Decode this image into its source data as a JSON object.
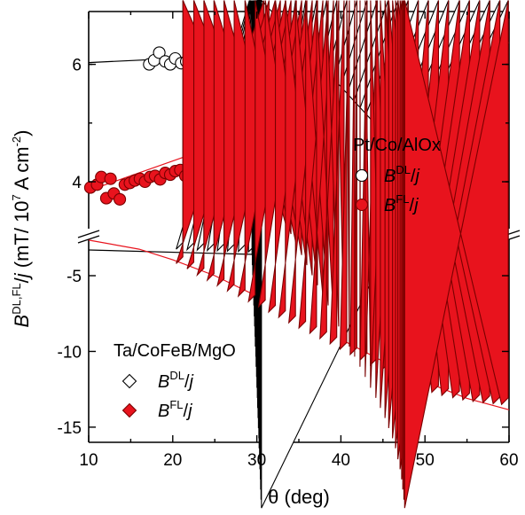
{
  "chart_data": {
    "type": "scatter",
    "xlabel": "θ (deg)",
    "ylabel": {
      "prefix": "B",
      "superscript": "DL,FL",
      "mid": "/",
      "italic_j": "j",
      "suffix": " (mT/ 10",
      "exp": "7",
      "unit": " A cm",
      "unit_exp": "-2",
      "close": ")"
    },
    "xlim": [
      10,
      60
    ],
    "xticks": [
      "10",
      "20",
      "30",
      "40",
      "50",
      "60"
    ],
    "panels": [
      {
        "id": "top",
        "ylim": [
          3.2,
          6.9
        ],
        "yticks": [
          {
            "value": 4,
            "label": "4"
          },
          {
            "value": 6,
            "label": "6"
          }
        ],
        "label": "Pt/Co/AlOx",
        "series": [
          {
            "name": "DL",
            "marker": "circle-open",
            "color": "#000000",
            "x": [
              17.2,
              17.8,
              18.4,
              19.1,
              19.7,
              20.3,
              21.0,
              21.6,
              22.3,
              22.8,
              23.4,
              24.0,
              24.6,
              25.2,
              25.9,
              26.5,
              27.1,
              27.6,
              28.2,
              28.6,
              29.3,
              29.9,
              30.5,
              31.2,
              31.8,
              32.4,
              33.0,
              33.6,
              34.2,
              34.9,
              35.5,
              36.1,
              36.7,
              37.3,
              37.9,
              38.5,
              39.2,
              39.8,
              40.4,
              41.0,
              41.6,
              42.2,
              42.8,
              43.5,
              44.1,
              44.7,
              45.3,
              45.9,
              46.5,
              47.1,
              47.8,
              48.4,
              49.0,
              49.6,
              50.2,
              50.8,
              51.4,
              52.1,
              52.7,
              53.3,
              53.9
            ],
            "y": [
              6.0,
              6.07,
              6.2,
              6.05,
              6.0,
              6.1,
              6.02,
              6.05,
              6.1,
              6.06,
              6.02,
              6.0,
              6.07,
              6.08,
              6.02,
              6.05,
              6.0,
              6.02,
              6.25,
              6.38,
              6.3,
              6.12,
              6.08,
              6.04,
              6.15,
              6.05,
              6.1,
              6.08,
              6.14,
              6.12,
              6.06,
              6.15,
              6.1,
              6.2,
              6.08,
              6.22,
              6.12,
              6.18,
              6.1,
              6.25,
              6.15,
              6.18,
              6.22,
              6.16,
              6.27,
              6.2,
              6.24,
              6.28,
              6.32,
              6.25,
              6.38,
              6.4,
              6.3,
              6.34,
              6.27,
              6.31,
              6.29,
              6.26,
              6.22,
              6.3,
              6.34
            ]
          },
          {
            "name": "FL",
            "marker": "circle-filled",
            "color": "#e8131d",
            "x": [
              10.2,
              11.0,
              11.5,
              12.1,
              12.6,
              13.0,
              13.7,
              14.3,
              14.9,
              15.5,
              16.1,
              16.7,
              17.3,
              17.9,
              18.5,
              19.1,
              19.7,
              20.3,
              20.9,
              21.5,
              22.1,
              22.7,
              23.3,
              23.9,
              24.5,
              25.1,
              25.7,
              26.3,
              26.9,
              27.5,
              28.1,
              28.7,
              29.3,
              29.9,
              30.5,
              31.1,
              31.7,
              32.3,
              32.9,
              33.5,
              34.1,
              34.7,
              35.3,
              35.9,
              36.5,
              37.1,
              37.7,
              38.3,
              38.9,
              39.5,
              40.1,
              40.7,
              41.3,
              41.9,
              42.5,
              43.1,
              43.7,
              44.3,
              44.9,
              45.5,
              46.1,
              46.7,
              47.3,
              47.9,
              48.5,
              49.1,
              49.7,
              50.3,
              50.9,
              51.5,
              52.1,
              52.7,
              53.3,
              53.9
            ],
            "y": [
              3.9,
              3.95,
              4.08,
              3.72,
              4.05,
              3.8,
              3.7,
              3.95,
              3.98,
              4.02,
              4.05,
              4.0,
              4.08,
              4.1,
              4.04,
              4.15,
              4.12,
              4.18,
              4.2,
              4.1,
              4.25,
              4.22,
              4.28,
              4.3,
              4.2,
              4.35,
              4.4,
              4.32,
              4.45,
              4.55,
              4.6,
              4.58,
              4.55,
              4.6,
              4.62,
              4.65,
              4.68,
              4.7,
              4.72,
              4.75,
              4.8,
              4.78,
              4.85,
              4.88,
              4.95,
              4.92,
              5.0,
              5.02,
              5.05,
              5.1,
              5.15,
              5.2,
              5.18,
              5.25,
              5.22,
              5.3,
              5.28,
              5.35,
              5.4,
              5.45,
              5.55,
              5.5,
              5.58,
              5.6,
              5.65,
              5.7,
              5.72,
              5.78,
              5.75,
              5.8,
              5.85,
              5.9,
              5.95,
              6.0
            ]
          }
        ],
        "fits": [
          {
            "color": "#000000",
            "x": [
              10,
              60
            ],
            "y": [
              6.03,
              6.37
            ]
          },
          {
            "color": "#e8131d",
            "x": [
              10,
              60
            ],
            "y": [
              3.85,
              6.37
            ]
          }
        ]
      },
      {
        "id": "bottom",
        "ylim": [
          -16,
          -2.6
        ],
        "yticks": [
          {
            "value": -5,
            "label": "-5"
          },
          {
            "value": -10,
            "label": "-10"
          },
          {
            "value": -15,
            "label": "-15"
          }
        ],
        "label": "Ta/CoFeB/MgO",
        "series": [
          {
            "name": "DL",
            "marker": "diamond-open",
            "color": "#000000",
            "x": [
              21.2,
              22.5,
              23.7,
              24.9,
              26.1,
              27.3,
              28.6,
              29.8,
              31.0,
              32.2,
              33.4,
              34.6,
              35.8,
              37.1,
              38.3,
              39.5,
              40.7,
              41.9,
              43.1,
              44.3,
              45.6,
              46.8,
              48.0,
              49.2,
              50.4,
              51.6,
              52.8,
              54.1,
              55.3,
              56.5,
              57.7,
              58.9,
              59.9
            ],
            "y": [
              -3.25,
              -3.28,
              -3.3,
              -3.33,
              -3.35,
              -3.38,
              -3.4,
              -3.43,
              -3.45,
              -3.48,
              -3.5,
              -3.53,
              -3.55,
              -3.58,
              -3.6,
              -3.63,
              -3.65,
              -3.68,
              -3.7,
              -3.73,
              -3.75,
              -3.78,
              -3.8,
              -3.83,
              -3.85,
              -3.88,
              -3.9,
              -3.93,
              -3.95,
              -3.98,
              -4.0,
              -4.02,
              -4.05
            ]
          },
          {
            "name": "FL",
            "marker": "diamond-filled",
            "color": "#e8131d",
            "x": [
              21.2,
              22.5,
              23.7,
              24.9,
              26.1,
              27.3,
              28.6,
              29.8,
              31.0,
              32.2,
              33.4,
              34.6,
              35.8,
              37.1,
              38.3,
              39.5,
              40.7,
              41.9,
              43.1,
              44.3,
              45.6,
              46.8,
              48.0,
              49.2,
              50.4,
              51.6,
              52.8,
              54.1,
              55.3,
              56.5,
              57.7,
              58.9,
              59.9
            ],
            "y": [
              -4.2,
              -4.55,
              -4.95,
              -5.3,
              -5.65,
              -6.0,
              -6.35,
              -6.7,
              -7.05,
              -7.4,
              -7.75,
              -8.1,
              -8.45,
              -8.8,
              -9.15,
              -9.5,
              -9.85,
              -10.2,
              -10.55,
              -10.9,
              -11.25,
              -11.6,
              -11.9,
              -12.2,
              -12.45,
              -12.7,
              -12.9,
              -13.05,
              -13.2,
              -13.3,
              -13.38,
              -13.45,
              -13.5
            ]
          }
        ],
        "fits": [
          {
            "color": "#000000",
            "x": [
              10,
              60
            ],
            "y": [
              -3.3,
              -4.05
            ]
          },
          {
            "color": "#e8131d",
            "x": [
              10,
              16,
              20,
              25,
              30,
              35,
              40,
              45,
              50,
              55,
              60
            ],
            "y": [
              -2.65,
              -3.25,
              -3.95,
              -5.0,
              -6.35,
              -7.7,
              -9.2,
              -10.65,
              -12.0,
              -13.1,
              -13.85
            ]
          }
        ]
      }
    ],
    "legend": {
      "top": [
        {
          "symbol": "circle-open",
          "text_main": "B",
          "text_sup": "DL",
          "text_tail": "/",
          "text_j": "j"
        },
        {
          "symbol": "circle-filled",
          "text_main": "B",
          "text_sup": "FL",
          "text_tail": "/",
          "text_j": "j"
        }
      ],
      "bottom": [
        {
          "symbol": "diamond-open",
          "text_main": "B",
          "text_sup": "DL",
          "text_tail": "/",
          "text_j": "j"
        },
        {
          "symbol": "diamond-filled",
          "text_main": "B",
          "text_sup": "FL",
          "text_tail": "/",
          "text_j": "j"
        }
      ]
    },
    "grid": false,
    "legend_placement": "right-middle (top panel), left-middle (bottom panel)"
  }
}
